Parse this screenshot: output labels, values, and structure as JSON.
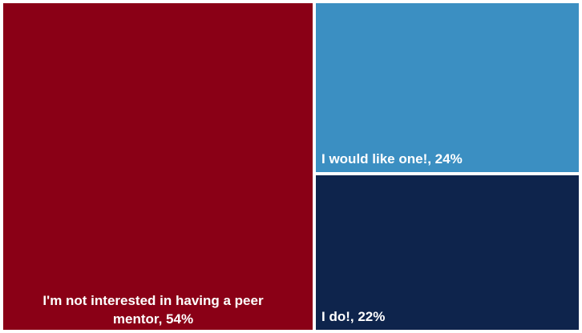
{
  "chart_data": {
    "type": "treemap",
    "title": "",
    "items": [
      {
        "label": "I'm not interested in having a peer mentor, 54%",
        "name": "I'm not interested in having a peer mentor",
        "value": 54,
        "color": "#8a0016"
      },
      {
        "label": "I would like one!, 24%",
        "name": "I would like one!",
        "value": 24,
        "color": "#3b8fc2"
      },
      {
        "label": "I do!, 22%",
        "name": "I do!",
        "value": 22,
        "color": "#0e244c"
      }
    ]
  }
}
